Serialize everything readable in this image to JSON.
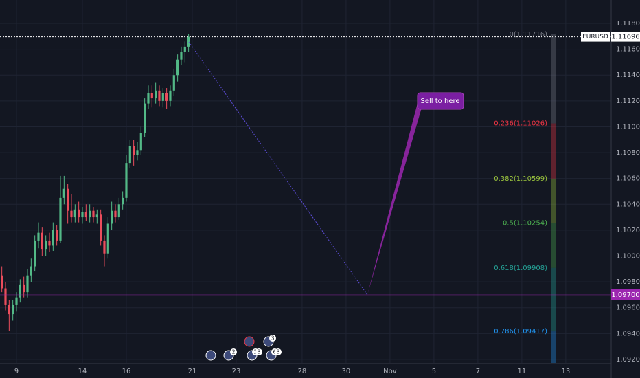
{
  "chart_data": {
    "type": "candlestick",
    "symbol": "EURUSD",
    "up_color": "#53b987",
    "down_color": "#eb4d5c",
    "grid": true,
    "xlim": [
      -4.5,
      162.4
    ],
    "xticks": [
      {
        "value": 0,
        "label": "9"
      },
      {
        "value": 18,
        "label": "14"
      },
      {
        "value": 30,
        "label": "16"
      },
      {
        "value": 48,
        "label": "21"
      },
      {
        "value": 60,
        "label": "23"
      },
      {
        "value": 78,
        "label": "28"
      },
      {
        "value": 90,
        "label": "30"
      },
      {
        "value": 102,
        "label": "Nov"
      },
      {
        "value": 114,
        "label": "5"
      },
      {
        "value": 126,
        "label": "7"
      },
      {
        "value": 138,
        "label": "11"
      },
      {
        "value": 150,
        "label": "13"
      }
    ],
    "ylim": [
      1.09173,
      1.11981
    ],
    "yticks": [
      {
        "value": 1.092,
        "label": "1.09200"
      },
      {
        "value": 1.094,
        "label": "1.09400"
      },
      {
        "value": 1.096,
        "label": "1.09600"
      },
      {
        "value": 1.098,
        "label": "1.09800"
      },
      {
        "value": 1.1,
        "label": "1.10000"
      },
      {
        "value": 1.102,
        "label": "1.10200"
      },
      {
        "value": 1.104,
        "label": "1.10400"
      },
      {
        "value": 1.106,
        "label": "1.10600"
      },
      {
        "value": 1.108,
        "label": "1.10800"
      },
      {
        "value": 1.11,
        "label": "1.11000"
      },
      {
        "value": 1.112,
        "label": "1.11200"
      },
      {
        "value": 1.114,
        "label": "1.11400"
      },
      {
        "value": 1.116,
        "label": "1.11600"
      },
      {
        "value": 1.118,
        "label": "1.11800"
      }
    ],
    "series": [
      {
        "name": "EURUSD",
        "x": [
          -4,
          -3,
          -2,
          -1,
          0,
          1,
          2,
          3,
          4,
          5,
          6,
          7,
          8,
          9,
          10,
          11,
          12,
          13,
          14,
          15,
          16,
          17,
          18,
          19,
          20,
          21,
          22,
          23,
          24,
          25,
          26,
          27,
          28,
          29,
          30,
          31,
          32,
          33,
          34,
          35,
          36,
          37,
          38,
          39,
          40,
          41,
          42,
          43,
          44,
          45,
          46,
          47
        ],
        "open": [
          1.0985,
          1.0975,
          1.0962,
          1.0955,
          1.0962,
          1.0968,
          1.0978,
          1.0972,
          1.0985,
          1.0992,
          1.1012,
          1.1018,
          1.1005,
          1.1012,
          1.1008,
          1.102,
          1.1012,
          1.1045,
          1.1052,
          1.1035,
          1.103,
          1.1036,
          1.103,
          1.1034,
          1.103,
          1.1035,
          1.103,
          1.1032,
          1.1012,
          1.1002,
          1.1025,
          1.1035,
          1.103,
          1.104,
          1.1045,
          1.1072,
          1.1085,
          1.1078,
          1.1082,
          1.1095,
          1.1118,
          1.1126,
          1.1122,
          1.1128,
          1.112,
          1.1126,
          1.112,
          1.1128,
          1.114,
          1.1152,
          1.1158,
          1.1162
        ],
        "high": [
          1.0992,
          1.098,
          1.0966,
          1.0966,
          1.0972,
          1.0982,
          1.0984,
          1.099,
          1.0998,
          1.1016,
          1.1026,
          1.1022,
          1.1016,
          1.1018,
          1.1026,
          1.1024,
          1.1062,
          1.1062,
          1.1056,
          1.1048,
          1.104,
          1.1042,
          1.1038,
          1.104,
          1.104,
          1.1038,
          1.1036,
          1.1036,
          1.1016,
          1.103,
          1.1042,
          1.104,
          1.1045,
          1.105,
          1.1078,
          1.109,
          1.109,
          1.1088,
          1.11,
          1.1122,
          1.1132,
          1.1132,
          1.1134,
          1.1132,
          1.113,
          1.113,
          1.1132,
          1.1145,
          1.1156,
          1.1162,
          1.1166,
          1.11716
        ],
        "low": [
          1.0972,
          1.0958,
          1.0942,
          1.095,
          1.0957,
          1.0964,
          1.0968,
          1.0968,
          1.098,
          1.0988,
          1.1006,
          1.1,
          1.1,
          1.1003,
          1.1004,
          1.1008,
          1.101,
          1.104,
          1.1025,
          1.1026,
          1.1026,
          1.1026,
          1.1025,
          1.1027,
          1.1026,
          1.1026,
          1.1025,
          1.1008,
          1.0992,
          1.0998,
          1.102,
          1.1026,
          1.1028,
          1.1036,
          1.1042,
          1.1068,
          1.107,
          1.1074,
          1.1078,
          1.1092,
          1.1114,
          1.1115,
          1.1118,
          1.1116,
          1.1115,
          1.1114,
          1.1116,
          1.1124,
          1.1135,
          1.1148,
          1.115,
          1.1158
        ],
        "close": [
          1.0975,
          1.0962,
          1.0955,
          1.0962,
          1.0968,
          1.0978,
          1.0972,
          1.0985,
          1.0992,
          1.1012,
          1.1018,
          1.1005,
          1.1012,
          1.1008,
          1.102,
          1.1012,
          1.1045,
          1.1052,
          1.1035,
          1.103,
          1.1036,
          1.103,
          1.1034,
          1.103,
          1.1035,
          1.103,
          1.1032,
          1.1012,
          1.1002,
          1.1025,
          1.1035,
          1.103,
          1.104,
          1.1045,
          1.1072,
          1.1085,
          1.1078,
          1.1082,
          1.1095,
          1.1118,
          1.1126,
          1.1122,
          1.1128,
          1.112,
          1.1126,
          1.112,
          1.1128,
          1.114,
          1.1152,
          1.1158,
          1.1162,
          1.11696
        ]
      }
    ],
    "last_price": {
      "value": 1.11696,
      "label": "1.11696"
    },
    "price_line": {
      "value": 1.097,
      "label": "1.09700",
      "color": "#9c27b0"
    },
    "fib_levels": [
      {
        "value": 1.11716,
        "label": "0(1.11716)",
        "color": "#787b86"
      },
      {
        "value": 1.11026,
        "label": "0.236(1.11026)",
        "color": "#f23645"
      },
      {
        "value": 1.10599,
        "label": "0.382(1.10599)",
        "color": "#9bc53d"
      },
      {
        "value": 1.10254,
        "label": "0.5(1.10254)",
        "color": "#4caf50"
      },
      {
        "value": 1.09908,
        "label": "0.618(1.09908)",
        "color": "#26a69a"
      },
      {
        "value": 1.09417,
        "label": "0.786(1.09417)",
        "color": "#2196f3"
      }
    ],
    "callout": "Sell to here",
    "event_badges": [
      "2",
      "2",
      "3",
      "6",
      "3",
      "3"
    ]
  }
}
